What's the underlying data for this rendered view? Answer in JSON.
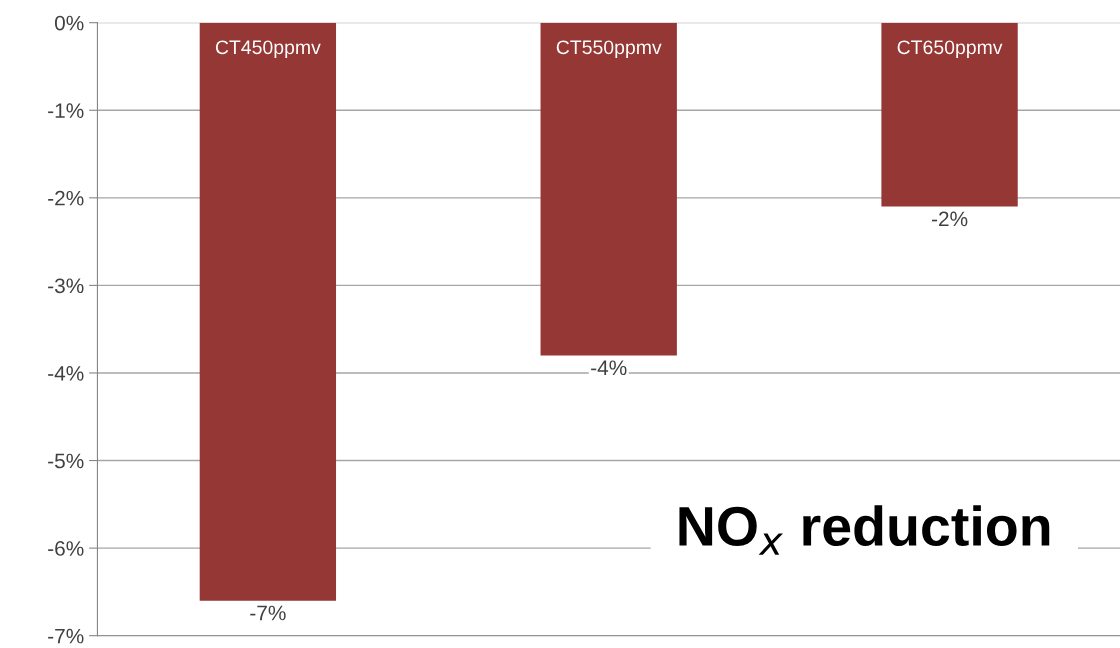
{
  "chart_data": {
    "type": "bar",
    "categories": [
      "CT450ppmv",
      "CT550ppmv",
      "CT650ppmv"
    ],
    "values": [
      -6.6,
      -3.8,
      -2.1
    ],
    "value_labels": [
      "-7%",
      "-4%",
      "-2%"
    ],
    "color": "#953735",
    "ylim": [
      -7,
      0
    ],
    "yticks": [
      {
        "value": 0,
        "label": "0%"
      },
      {
        "value": -1,
        "label": "-1%"
      },
      {
        "value": -2,
        "label": "-2%"
      },
      {
        "value": -3,
        "label": "-3%"
      },
      {
        "value": -4,
        "label": "-4%"
      },
      {
        "value": -5,
        "label": "-5%"
      },
      {
        "value": -6,
        "label": "-6%"
      },
      {
        "value": -7,
        "label": "-7%"
      }
    ],
    "grid": "y",
    "annotations": [
      "NO$_{x}$ reduction"
    ]
  }
}
